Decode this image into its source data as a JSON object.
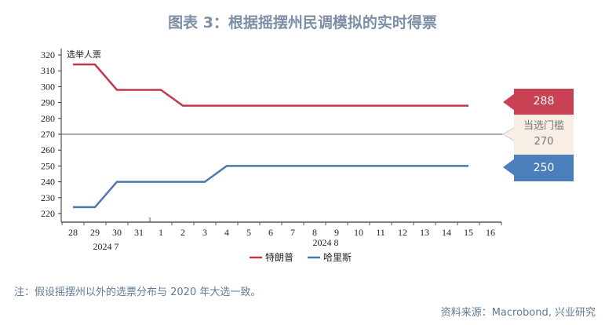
{
  "title": "图表 3：根据摇摆州民调模拟的实时得票",
  "note": "注：假设摇摆州以外的选票分布与 2020 年大选一致。",
  "source": "资料来源：Macrobond, 兴业研究",
  "chart_data": {
    "type": "line",
    "ylabel": "选举人票",
    "ylim": [
      215,
      324
    ],
    "yticks": [
      220,
      230,
      240,
      250,
      260,
      270,
      280,
      290,
      300,
      310,
      320
    ],
    "xtick_labels": [
      "28",
      "29",
      "30",
      "31",
      "1",
      "2",
      "3",
      "4",
      "5",
      "6",
      "7",
      "8",
      "9",
      "10",
      "11",
      "12",
      "13",
      "14",
      "15",
      "16"
    ],
    "month_labels": [
      "2024 7",
      "2024 8"
    ],
    "grid": false,
    "legend_position": "bottom",
    "threshold": {
      "label": "当选门槛",
      "value": 270,
      "color": "#555555"
    },
    "series": [
      {
        "name": "特朗普",
        "color": "#c0394f",
        "values": [
          314,
          314,
          298,
          298,
          298,
          288,
          288,
          288,
          288,
          288,
          288,
          288,
          288,
          288,
          288,
          288,
          288,
          288,
          288
        ]
      },
      {
        "name": "哈里斯",
        "color": "#4a78b0",
        "values": [
          224,
          224,
          240,
          240,
          240,
          240,
          240,
          250,
          250,
          250,
          250,
          250,
          250,
          250,
          250,
          250,
          250,
          250,
          250
        ]
      }
    ],
    "end_labels": [
      "288",
      "250"
    ]
  }
}
